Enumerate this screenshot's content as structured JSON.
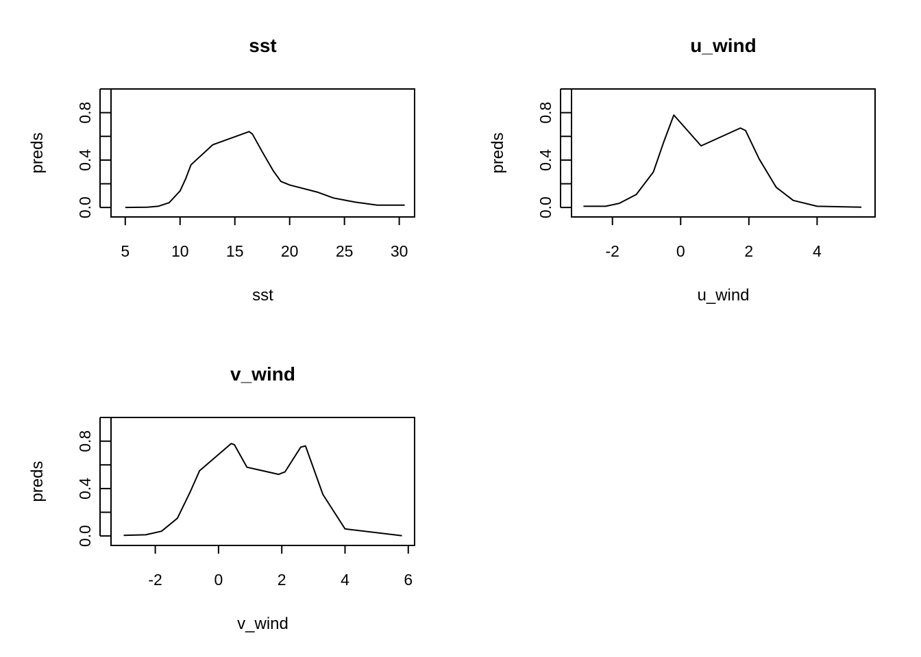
{
  "chart_data": [
    {
      "type": "line",
      "title": "sst",
      "xlabel": "sst",
      "ylabel": "preds",
      "xlim": [
        3.7,
        31.4
      ],
      "ylim": [
        -0.08,
        1.0
      ],
      "xticks": [
        5,
        10,
        15,
        20,
        25,
        30
      ],
      "yticks": [
        0.0,
        0.2,
        0.4,
        0.6,
        0.8,
        1.0
      ],
      "ytick_labels": [
        "0.0",
        "",
        "0.4",
        "",
        "0.8",
        ""
      ],
      "grid": false,
      "x": [
        5,
        7,
        8,
        9,
        10,
        10.5,
        11,
        13,
        16.3,
        16.6,
        17.5,
        18.5,
        19.2,
        20,
        22.5,
        24,
        26,
        28,
        30.5
      ],
      "y": [
        0.0,
        0.002,
        0.01,
        0.04,
        0.14,
        0.24,
        0.36,
        0.53,
        0.64,
        0.62,
        0.47,
        0.31,
        0.22,
        0.19,
        0.13,
        0.08,
        0.045,
        0.02,
        0.02
      ]
    },
    {
      "type": "line",
      "title": "u_wind",
      "xlabel": "u_wind",
      "ylabel": "preds",
      "xlim": [
        -3.2,
        5.7
      ],
      "ylim": [
        -0.08,
        1.0
      ],
      "xticks": [
        -2,
        0,
        2,
        4
      ],
      "yticks": [
        0.0,
        0.2,
        0.4,
        0.6,
        0.8,
        1.0
      ],
      "ytick_labels": [
        "0.0",
        "",
        "0.4",
        "",
        "0.8",
        ""
      ],
      "grid": false,
      "x": [
        -2.85,
        -2.2,
        -1.8,
        -1.3,
        -0.8,
        -0.5,
        -0.2,
        0.6,
        1.75,
        1.9,
        2.3,
        2.8,
        3.3,
        4.0,
        5.3
      ],
      "y": [
        0.01,
        0.01,
        0.035,
        0.11,
        0.3,
        0.55,
        0.78,
        0.52,
        0.67,
        0.65,
        0.41,
        0.17,
        0.06,
        0.01,
        0.002
      ]
    },
    {
      "type": "line",
      "title": "v_wind",
      "xlabel": "v_wind",
      "ylabel": "preds",
      "xlim": [
        -3.4,
        6.2
      ],
      "ylim": [
        -0.08,
        1.0
      ],
      "xticks": [
        -2,
        0,
        2,
        4,
        6
      ],
      "yticks": [
        0.0,
        0.2,
        0.4,
        0.6,
        0.8,
        1.0
      ],
      "ytick_labels": [
        "0.0",
        "",
        "0.4",
        "",
        "0.8",
        ""
      ],
      "grid": false,
      "x": [
        -3.0,
        -2.3,
        -1.8,
        -1.3,
        -0.9,
        -0.6,
        0.4,
        0.5,
        0.9,
        1.9,
        2.1,
        2.6,
        2.75,
        3.3,
        4.0,
        5.8
      ],
      "y": [
        0.005,
        0.01,
        0.04,
        0.15,
        0.37,
        0.55,
        0.78,
        0.77,
        0.58,
        0.52,
        0.54,
        0.75,
        0.76,
        0.35,
        0.06,
        0.002
      ]
    }
  ]
}
